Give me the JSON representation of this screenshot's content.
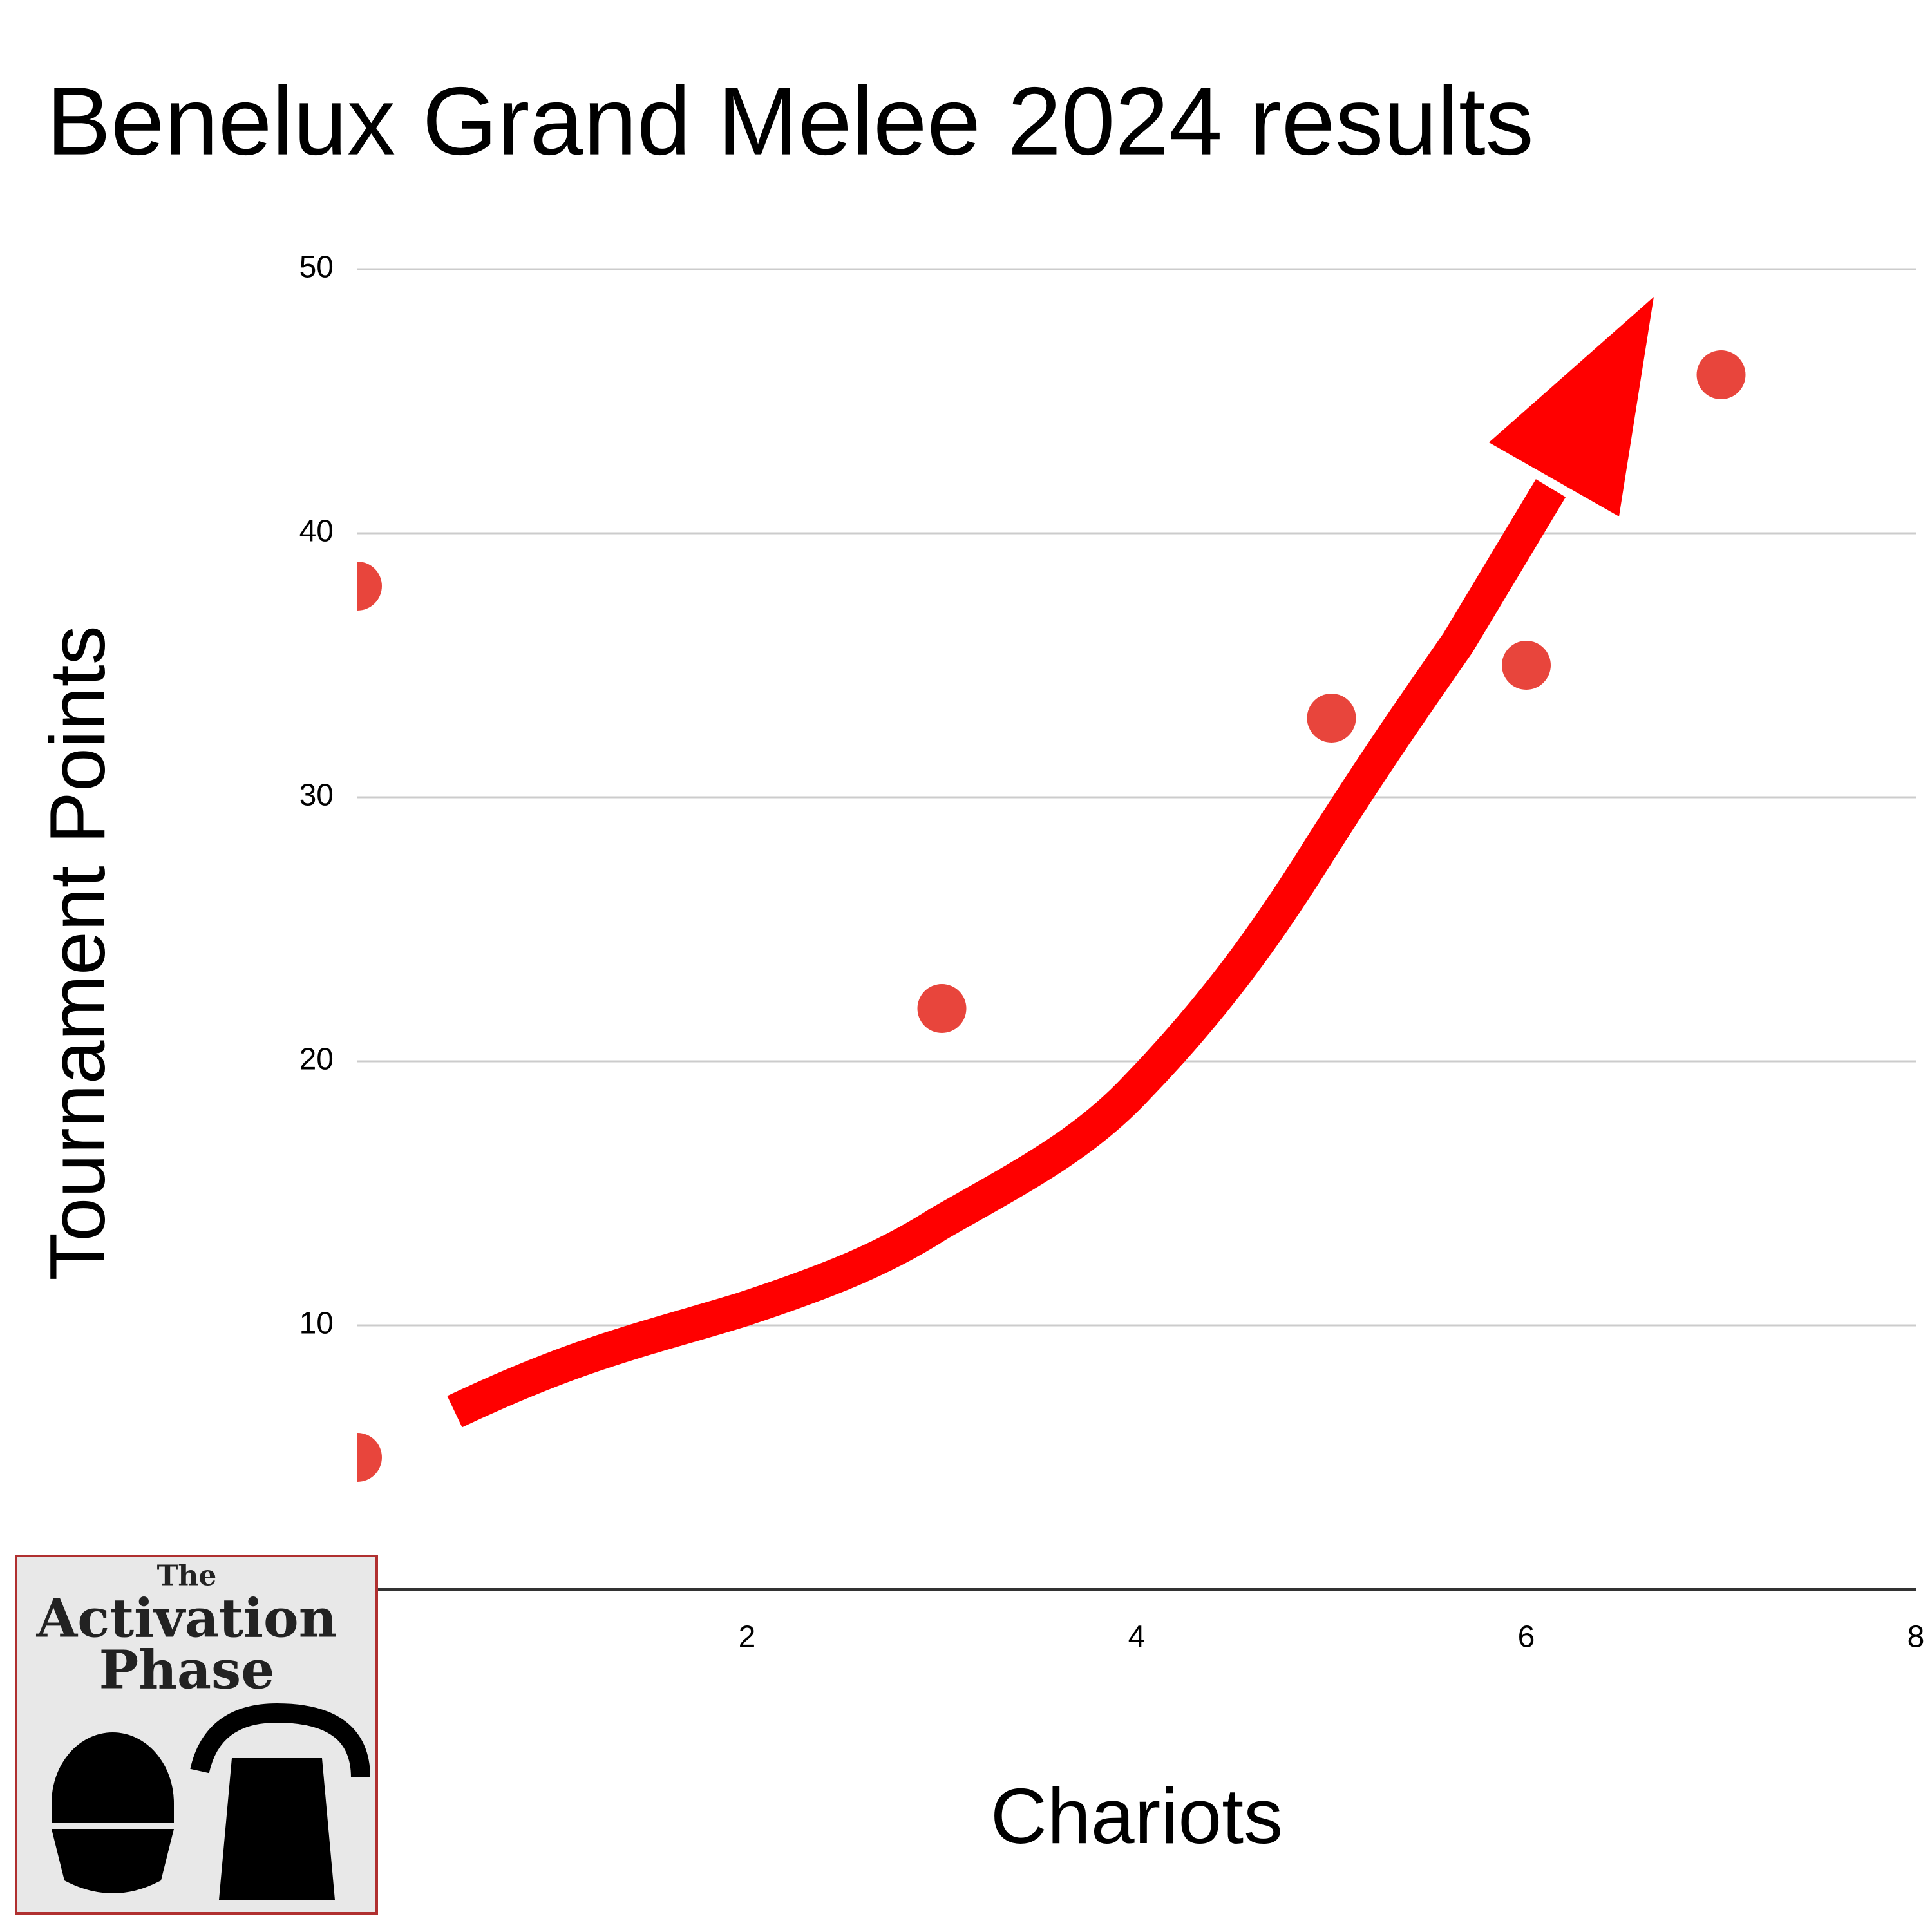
{
  "chart_data": {
    "type": "scatter",
    "title": "Benelux Grand Melee 2024 results",
    "x_label": "Chariots",
    "y_label": "Tournament Points",
    "x": [
      0,
      0,
      3,
      5,
      6,
      7
    ],
    "values": [
      38,
      5,
      22,
      33,
      35,
      46
    ],
    "color": "#e8453c",
    "xlim": [
      0,
      8
    ],
    "xticks": [
      2,
      4,
      6,
      8
    ],
    "ylim": [
      0,
      50
    ],
    "yticks": [
      10,
      20,
      30,
      40,
      50
    ],
    "grid": true
  },
  "logo": {
    "line1": "The",
    "line2": "Activation",
    "line3": "Phase"
  }
}
